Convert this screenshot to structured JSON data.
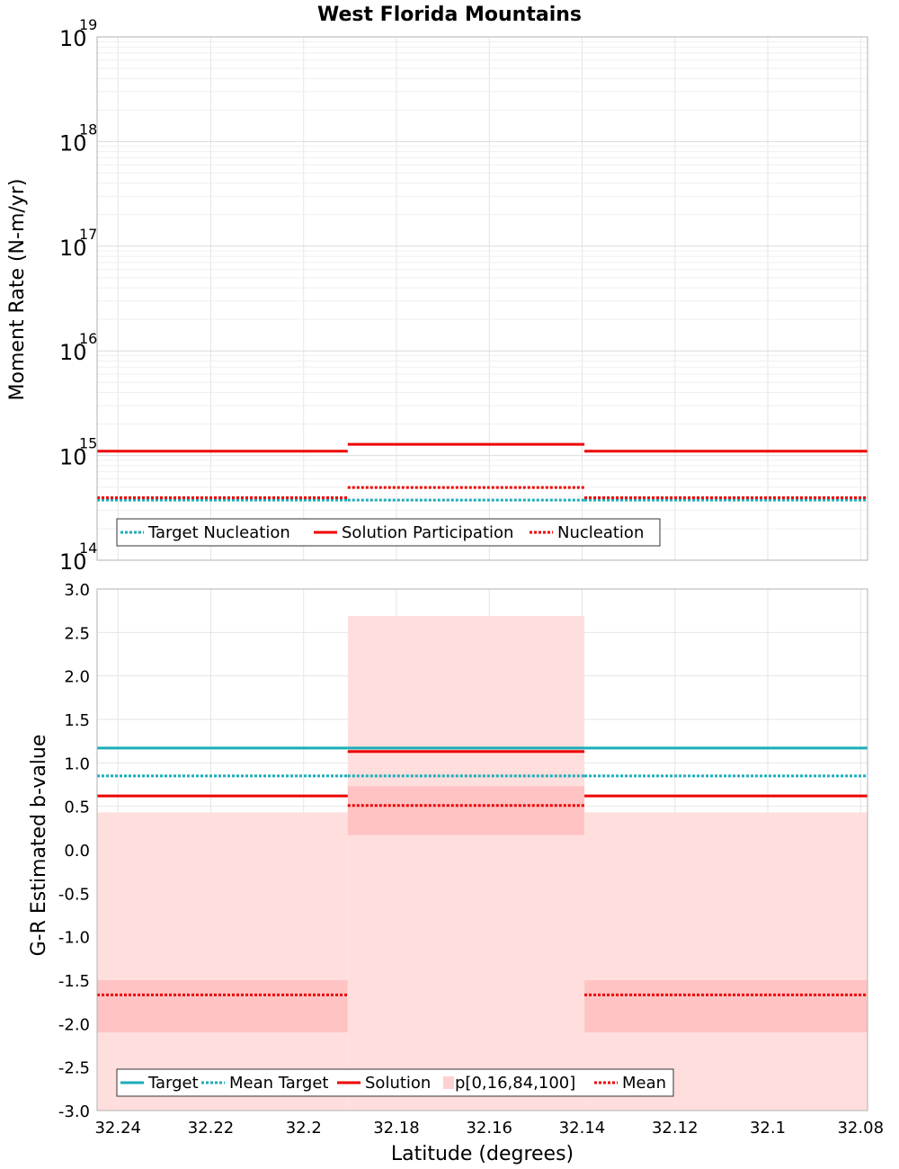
{
  "title": "West Florida Mountains",
  "xlabel": "Latitude (degrees)",
  "colors": {
    "target": "#1aadb8",
    "solution": "#ee0000",
    "band_outer": "#ffdede",
    "band_inner": "#ffc3c3",
    "grid": "#e6e6e6",
    "frame": "#b0b0b0"
  },
  "chart_data": [
    {
      "type": "line",
      "ylabel": "Moment Rate (N-m/yr)",
      "yscale": "log",
      "ylim": [
        100000000000000.0,
        1e+19
      ],
      "xlim": [
        32.2445,
        32.0785
      ],
      "x_ticks": [
        "32.24",
        "32.22",
        "32.2",
        "32.18",
        "32.16",
        "32.14",
        "32.12",
        "32.1",
        "32.08"
      ],
      "y_ticks": [
        {
          "base": "10",
          "exp": "14"
        },
        {
          "base": "10",
          "exp": "15"
        },
        {
          "base": "10",
          "exp": "16"
        },
        {
          "base": "10",
          "exp": "17"
        },
        {
          "base": "10",
          "exp": "18"
        },
        {
          "base": "10",
          "exp": "19"
        }
      ],
      "sections": [
        {
          "x": [
            32.2445,
            32.1905
          ]
        },
        {
          "x": [
            32.1905,
            32.1395
          ]
        },
        {
          "x": [
            32.1395,
            32.0785
          ]
        }
      ],
      "series": [
        {
          "name": "Target Nucleation",
          "style": "dotted",
          "color": "target",
          "values": [
            375000000000000.0,
            375000000000000.0,
            375000000000000.0
          ]
        },
        {
          "name": "Solution Participation",
          "style": "solid",
          "color": "solution",
          "values": [
            1100000000000000.0,
            1280000000000000.0,
            1100000000000000.0
          ]
        },
        {
          "name": "Nucleation",
          "style": "dotted",
          "color": "solution",
          "values": [
            395000000000000.0,
            495000000000000.0,
            395000000000000.0
          ]
        }
      ],
      "legend": [
        "Target Nucleation",
        "Solution Participation",
        "Nucleation"
      ],
      "legend_position": "bottom-left",
      "grid": true
    },
    {
      "type": "line",
      "ylabel": "G-R Estimated b-value",
      "ylim": [
        -3.0,
        3.0
      ],
      "xlim": [
        32.2445,
        32.0785
      ],
      "y_ticks": [
        "3.0",
        "2.5",
        "2.0",
        "1.5",
        "1.0",
        "0.5",
        "0.0",
        "-0.5",
        "-1.0",
        "-1.5",
        "-2.0",
        "-2.5",
        "-3.0"
      ],
      "x_ticks": [
        "32.24",
        "32.22",
        "32.2",
        "32.18",
        "32.16",
        "32.14",
        "32.12",
        "32.1",
        "32.08"
      ],
      "sections": [
        {
          "x": [
            32.2445,
            32.1905
          ],
          "target": 1.17,
          "mean_target": 0.85,
          "solution": 0.62,
          "mean": -1.67,
          "p0": -3.0,
          "p16": -2.1,
          "p84": -1.5,
          "p100": 0.43
        },
        {
          "x": [
            32.1905,
            32.1395
          ],
          "target": 1.17,
          "mean_target": 0.85,
          "solution": 1.13,
          "mean": 0.51,
          "p0": -3.0,
          "p16": 0.17,
          "p84": 0.73,
          "p100": 2.69
        },
        {
          "x": [
            32.1395,
            32.0785
          ],
          "target": 1.17,
          "mean_target": 0.85,
          "solution": 0.62,
          "mean": -1.67,
          "p0": -3.0,
          "p16": -2.1,
          "p84": -1.5,
          "p100": 0.43
        }
      ],
      "legend": [
        "Target",
        "Mean Target",
        "Solution",
        "p[0,16,84,100]",
        "Mean"
      ],
      "legend_position": "bottom-left",
      "grid": true
    }
  ]
}
